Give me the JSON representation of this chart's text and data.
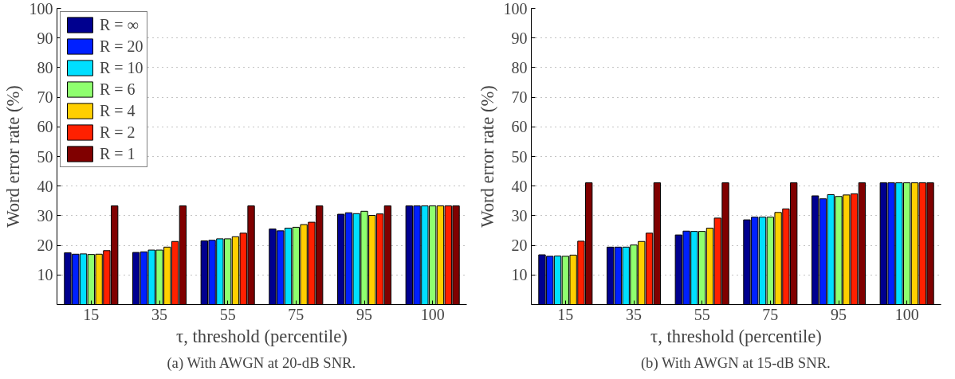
{
  "chart_data": [
    {
      "type": "bar",
      "xlabel": "τ, threshold (percentile)",
      "ylabel": "Word error rate (%)",
      "annotations": [
        "(a) With AWGN at 20-dB SNR."
      ],
      "categories": [
        "15",
        "35",
        "55",
        "75",
        "95",
        "100"
      ],
      "ylim": [
        0,
        100
      ],
      "yticks": [
        10,
        20,
        30,
        40,
        50,
        60,
        70,
        80,
        90,
        100
      ],
      "grid": "y",
      "legend": "top left",
      "series": [
        {
          "name": "R = ∞",
          "color": "#00008f",
          "values": [
            17.5,
            17.6,
            21.5,
            25.5,
            30.5,
            33.3
          ]
        },
        {
          "name": "R = 20",
          "color": "#0020ff",
          "values": [
            17.0,
            17.8,
            21.7,
            24.9,
            31.0,
            33.3
          ]
        },
        {
          "name": "R = 10",
          "color": "#00dfff",
          "values": [
            17.1,
            18.4,
            22.2,
            25.8,
            30.7,
            33.3
          ]
        },
        {
          "name": "R = 6",
          "color": "#8fff6f",
          "values": [
            16.9,
            18.4,
            22.2,
            26.1,
            31.5,
            33.3
          ]
        },
        {
          "name": "R = 4",
          "color": "#ffcf00",
          "values": [
            17.0,
            19.4,
            22.9,
            27.0,
            30.1,
            33.3
          ]
        },
        {
          "name": "R = 2",
          "color": "#ff2000",
          "values": [
            18.2,
            21.3,
            24.1,
            27.8,
            30.6,
            33.3
          ]
        },
        {
          "name": "R = 1",
          "color": "#800000",
          "values": [
            33.3,
            33.3,
            33.3,
            33.3,
            33.3,
            33.3
          ]
        }
      ]
    },
    {
      "type": "bar",
      "xlabel": "τ, threshold (percentile)",
      "ylabel": "Word error rate (%)",
      "annotations": [
        "(b) With AWGN at 15-dB SNR."
      ],
      "categories": [
        "15",
        "35",
        "55",
        "75",
        "95",
        "100"
      ],
      "ylim": [
        0,
        100
      ],
      "yticks": [
        10,
        20,
        30,
        40,
        50,
        60,
        70,
        80,
        90,
        100
      ],
      "grid": "y",
      "legend": false,
      "series": [
        {
          "color": "#00008f",
          "values": [
            16.8,
            19.4,
            23.5,
            28.6,
            36.7,
            41.1
          ]
        },
        {
          "color": "#0020ff",
          "values": [
            16.3,
            19.4,
            24.8,
            29.5,
            35.7,
            41.1
          ]
        },
        {
          "color": "#00dfff",
          "values": [
            16.4,
            19.4,
            24.7,
            29.5,
            37.1,
            41.1
          ]
        },
        {
          "color": "#8fff6f",
          "values": [
            16.3,
            20.1,
            24.7,
            29.5,
            36.5,
            41.1
          ]
        },
        {
          "color": "#ffcf00",
          "values": [
            16.7,
            21.3,
            25.8,
            31.1,
            37.0,
            41.1
          ]
        },
        {
          "color": "#ff2000",
          "values": [
            21.4,
            24.1,
            29.2,
            32.3,
            37.4,
            41.1
          ]
        },
        {
          "color": "#800000",
          "values": [
            41.1,
            41.1,
            41.1,
            41.1,
            41.1,
            41.1
          ]
        }
      ]
    }
  ]
}
